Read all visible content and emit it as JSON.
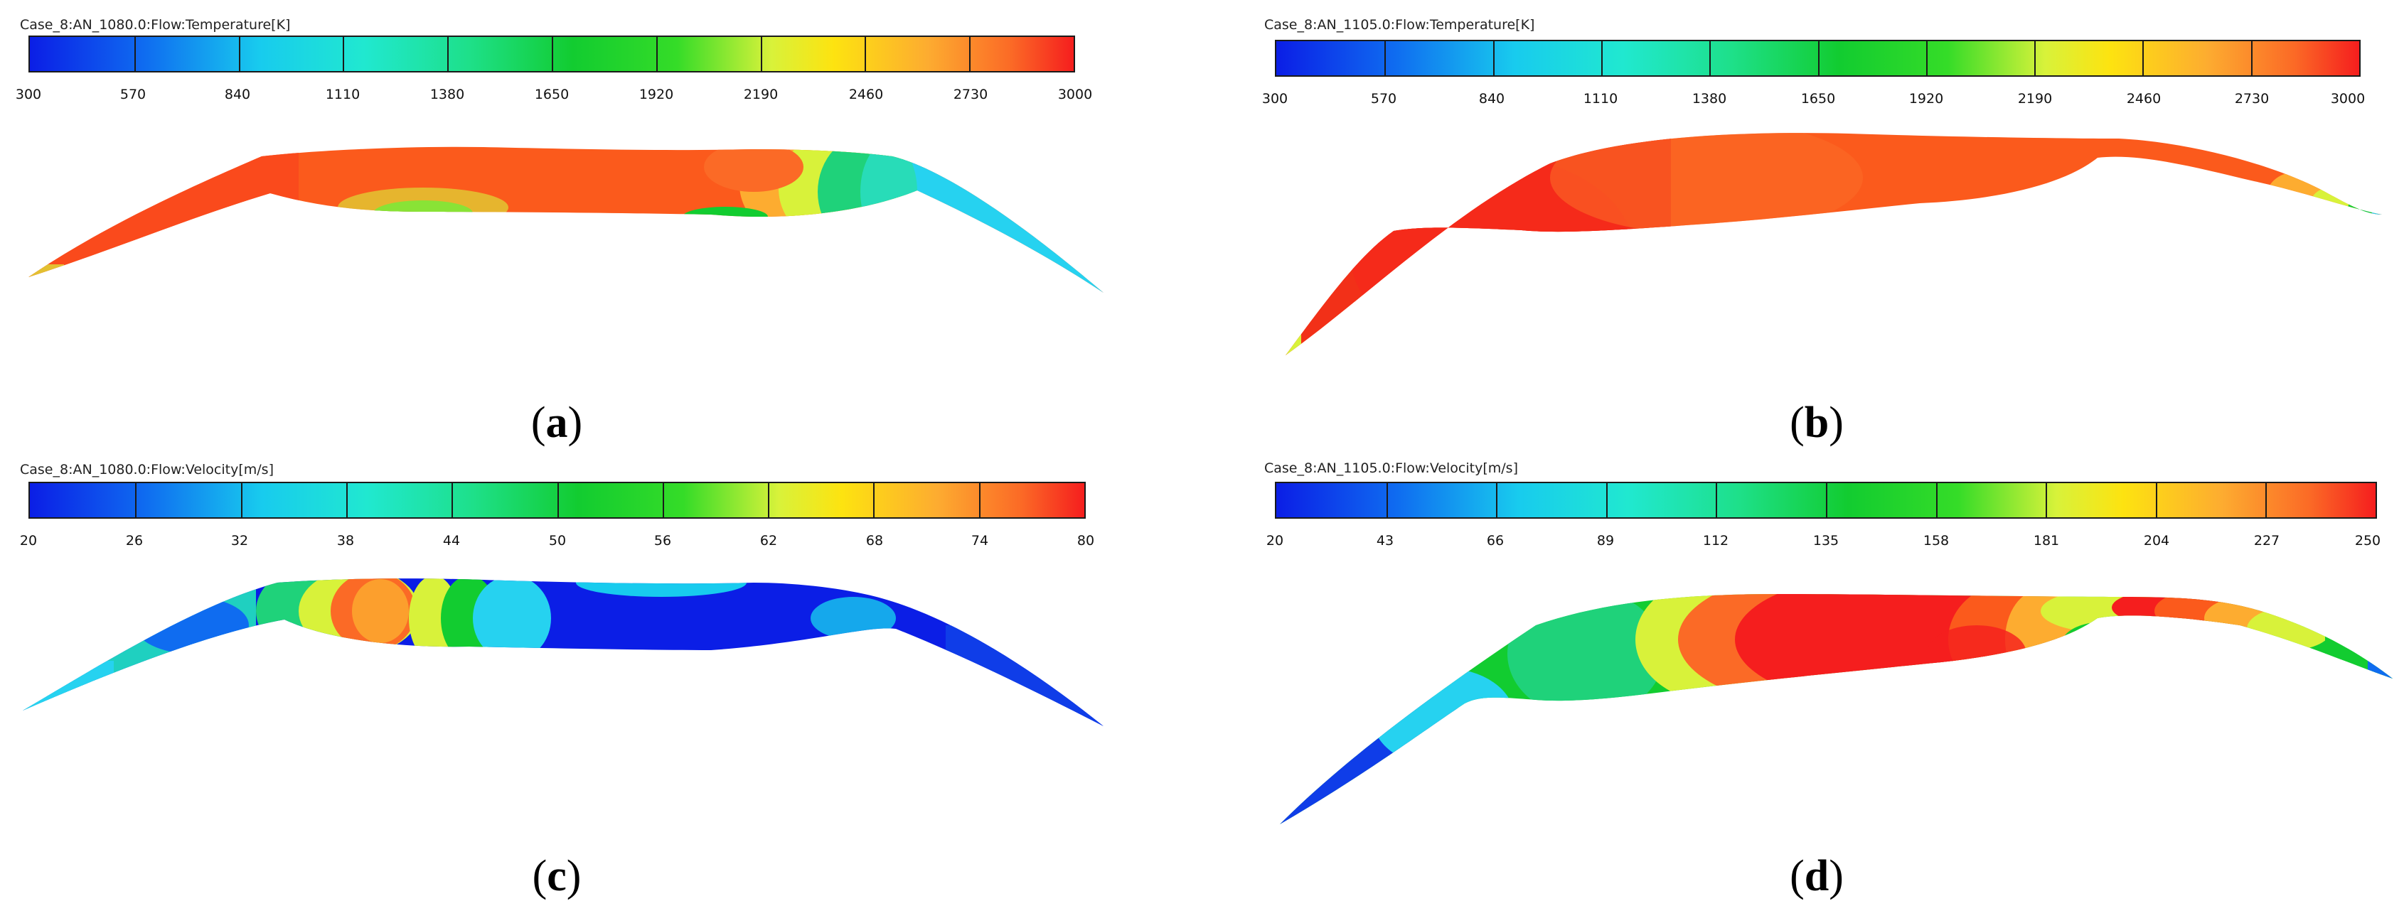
{
  "panels": [
    {
      "id": "a",
      "title": "Case_8:AN_1080.0:Flow:Temperature[K]",
      "ticks": [
        "300",
        "570",
        "840",
        "1110",
        "1380",
        "1650",
        "1920",
        "2190",
        "2460",
        "2730",
        "3000"
      ],
      "caption_open": "(",
      "caption_letter": "a",
      "caption_close": ")"
    },
    {
      "id": "b",
      "title": "Case_8:AN_1105.0:Flow:Temperature[K]",
      "ticks": [
        "300",
        "570",
        "840",
        "1110",
        "1380",
        "1650",
        "1920",
        "2190",
        "2460",
        "2730",
        "3000"
      ],
      "caption_open": "(",
      "caption_letter": "b",
      "caption_close": ")"
    },
    {
      "id": "c",
      "title": "Case_8:AN_1080.0:Flow:Velocity[m/s]",
      "ticks": [
        "20",
        "26",
        "32",
        "38",
        "44",
        "50",
        "56",
        "62",
        "68",
        "74",
        "80"
      ],
      "caption_open": "(",
      "caption_letter": "c",
      "caption_close": ")"
    },
    {
      "id": "d",
      "title": "Case_8:AN_1105.0:Flow:Velocity[m/s]",
      "ticks": [
        "20",
        "43",
        "66",
        "89",
        "112",
        "135",
        "158",
        "181",
        "204",
        "227",
        "250"
      ],
      "caption_open": "(",
      "caption_letter": "d",
      "caption_close": ")"
    }
  ],
  "colors": {
    "red": "#f51e1e",
    "orange": "#fb5a1c",
    "yellow": "#fde310",
    "green": "#12cc30",
    "cyan": "#26d2f0",
    "blue": "#0b1ee6"
  }
}
